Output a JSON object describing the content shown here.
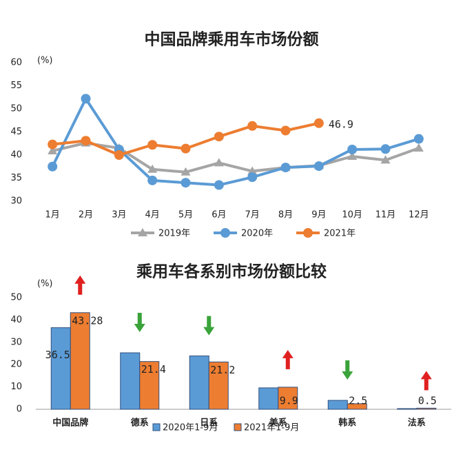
{
  "chart_data": [
    {
      "type": "line",
      "title": "中国品牌乘用车市场份额",
      "y_label": "(%)",
      "categories": [
        "1月",
        "2月",
        "3月",
        "4月",
        "5月",
        "6月",
        "7月",
        "8月",
        "9月",
        "10月",
        "11月",
        "12月"
      ],
      "ylim": [
        30,
        60
      ],
      "yticks": [
        30,
        35,
        40,
        45,
        50,
        55,
        60
      ],
      "grid": false,
      "series": [
        {
          "name": "2019年",
          "color": "#a5a5a5",
          "marker": "triangle",
          "values": [
            40.9,
            42.6,
            41.5,
            36.9,
            36.3,
            38.3,
            36.5,
            37.3,
            37.7,
            39.7,
            38.9,
            41.5
          ]
        },
        {
          "name": "2020年",
          "color": "#5b9bd5",
          "marker": "circle",
          "values": [
            37.5,
            52.2,
            41.2,
            34.5,
            34.0,
            33.5,
            35.2,
            37.3,
            37.6,
            41.2,
            41.3,
            43.5
          ]
        },
        {
          "name": "2021年",
          "color": "#ed7d31",
          "marker": "circle",
          "label_last": true,
          "values": [
            42.3,
            43.1,
            40.0,
            42.2,
            41.4,
            44.0,
            46.3,
            45.3,
            46.9,
            null,
            null,
            null
          ]
        }
      ]
    },
    {
      "type": "bar",
      "title": "乘用车各系别市场份额比较",
      "y_label": "(%)",
      "categories": [
        "中国品牌",
        "德系",
        "日系",
        "美系",
        "韩系",
        "法系"
      ],
      "ylim": [
        0,
        50
      ],
      "yticks": [
        0,
        10,
        20,
        30,
        40,
        50
      ],
      "grid": false,
      "trend": [
        "up",
        "down",
        "down",
        "up",
        "down",
        "up"
      ],
      "series": [
        {
          "name": "2020年1-9月",
          "color": "#5b9bd5",
          "labeled": [
            true,
            false,
            false,
            false,
            false,
            false
          ],
          "values": [
            36.55,
            25.3,
            23.9,
            9.6,
            4.0,
            0.3
          ]
        },
        {
          "name": "2021年1-9月",
          "color": "#ed7d31",
          "labeled": [
            true,
            true,
            true,
            true,
            true,
            true
          ],
          "values": [
            43.28,
            21.4,
            21.2,
            9.9,
            2.5,
            0.5
          ]
        }
      ]
    }
  ]
}
